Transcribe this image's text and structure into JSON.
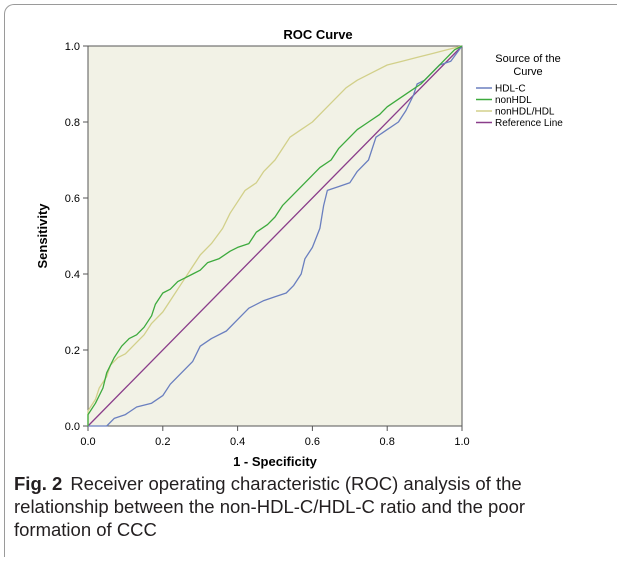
{
  "chart_data": {
    "type": "line",
    "title": "ROC Curve",
    "xlabel": "1 - Specificity",
    "ylabel": "Sensitivity",
    "xlim": [
      0,
      1
    ],
    "ylim": [
      0,
      1
    ],
    "x_ticks": [
      "0.0",
      "0.2",
      "0.4",
      "0.6",
      "0.8",
      "1.0"
    ],
    "y_ticks": [
      "0.0",
      "0.2",
      "0.4",
      "0.6",
      "0.8",
      "1.0"
    ],
    "grid": false,
    "legend": {
      "title": "Source of the Curve",
      "placement": "right"
    },
    "series": [
      {
        "name": "HDL-C",
        "color": "#6a7fbf",
        "points": [
          [
            0,
            0
          ],
          [
            0.05,
            0
          ],
          [
            0.07,
            0.02
          ],
          [
            0.1,
            0.03
          ],
          [
            0.13,
            0.05
          ],
          [
            0.17,
            0.06
          ],
          [
            0.2,
            0.08
          ],
          [
            0.22,
            0.11
          ],
          [
            0.25,
            0.14
          ],
          [
            0.28,
            0.17
          ],
          [
            0.3,
            0.21
          ],
          [
            0.33,
            0.23
          ],
          [
            0.37,
            0.25
          ],
          [
            0.4,
            0.28
          ],
          [
            0.43,
            0.31
          ],
          [
            0.47,
            0.33
          ],
          [
            0.5,
            0.34
          ],
          [
            0.53,
            0.35
          ],
          [
            0.55,
            0.37
          ],
          [
            0.57,
            0.4
          ],
          [
            0.58,
            0.44
          ],
          [
            0.6,
            0.47
          ],
          [
            0.62,
            0.52
          ],
          [
            0.63,
            0.58
          ],
          [
            0.64,
            0.62
          ],
          [
            0.67,
            0.63
          ],
          [
            0.7,
            0.64
          ],
          [
            0.72,
            0.67
          ],
          [
            0.75,
            0.7
          ],
          [
            0.77,
            0.76
          ],
          [
            0.8,
            0.78
          ],
          [
            0.83,
            0.8
          ],
          [
            0.85,
            0.83
          ],
          [
            0.87,
            0.87
          ],
          [
            0.88,
            0.9
          ],
          [
            0.9,
            0.91
          ],
          [
            0.92,
            0.93
          ],
          [
            0.94,
            0.95
          ],
          [
            0.97,
            0.96
          ],
          [
            1.0,
            1.0
          ]
        ]
      },
      {
        "name": "nonHDL",
        "color": "#3daa3d",
        "points": [
          [
            0,
            0
          ],
          [
            0,
            0.03
          ],
          [
            0.02,
            0.06
          ],
          [
            0.04,
            0.1
          ],
          [
            0.05,
            0.14
          ],
          [
            0.07,
            0.18
          ],
          [
            0.09,
            0.21
          ],
          [
            0.11,
            0.23
          ],
          [
            0.13,
            0.24
          ],
          [
            0.15,
            0.26
          ],
          [
            0.17,
            0.29
          ],
          [
            0.18,
            0.32
          ],
          [
            0.2,
            0.35
          ],
          [
            0.22,
            0.36
          ],
          [
            0.24,
            0.38
          ],
          [
            0.26,
            0.39
          ],
          [
            0.28,
            0.4
          ],
          [
            0.3,
            0.41
          ],
          [
            0.32,
            0.43
          ],
          [
            0.35,
            0.44
          ],
          [
            0.38,
            0.46
          ],
          [
            0.4,
            0.47
          ],
          [
            0.43,
            0.48
          ],
          [
            0.45,
            0.51
          ],
          [
            0.48,
            0.53
          ],
          [
            0.5,
            0.55
          ],
          [
            0.52,
            0.58
          ],
          [
            0.55,
            0.61
          ],
          [
            0.58,
            0.64
          ],
          [
            0.6,
            0.66
          ],
          [
            0.62,
            0.68
          ],
          [
            0.65,
            0.7
          ],
          [
            0.67,
            0.73
          ],
          [
            0.7,
            0.76
          ],
          [
            0.72,
            0.78
          ],
          [
            0.75,
            0.8
          ],
          [
            0.78,
            0.82
          ],
          [
            0.8,
            0.84
          ],
          [
            0.83,
            0.86
          ],
          [
            0.86,
            0.88
          ],
          [
            0.89,
            0.9
          ],
          [
            0.92,
            0.93
          ],
          [
            0.95,
            0.96
          ],
          [
            0.98,
            0.99
          ],
          [
            1.0,
            1.0
          ]
        ]
      },
      {
        "name": "nonHDL/HDL",
        "color": "#d2d08a",
        "points": [
          [
            0,
            0
          ],
          [
            0,
            0.04
          ],
          [
            0.02,
            0.07
          ],
          [
            0.03,
            0.1
          ],
          [
            0.05,
            0.13
          ],
          [
            0.06,
            0.16
          ],
          [
            0.08,
            0.18
          ],
          [
            0.1,
            0.19
          ],
          [
            0.12,
            0.21
          ],
          [
            0.15,
            0.24
          ],
          [
            0.17,
            0.27
          ],
          [
            0.2,
            0.3
          ],
          [
            0.22,
            0.33
          ],
          [
            0.24,
            0.36
          ],
          [
            0.26,
            0.39
          ],
          [
            0.28,
            0.42
          ],
          [
            0.3,
            0.45
          ],
          [
            0.33,
            0.48
          ],
          [
            0.36,
            0.52
          ],
          [
            0.38,
            0.56
          ],
          [
            0.4,
            0.59
          ],
          [
            0.42,
            0.62
          ],
          [
            0.45,
            0.64
          ],
          [
            0.47,
            0.67
          ],
          [
            0.5,
            0.7
          ],
          [
            0.52,
            0.73
          ],
          [
            0.54,
            0.76
          ],
          [
            0.57,
            0.78
          ],
          [
            0.6,
            0.8
          ],
          [
            0.63,
            0.83
          ],
          [
            0.66,
            0.86
          ],
          [
            0.69,
            0.89
          ],
          [
            0.72,
            0.91
          ],
          [
            0.76,
            0.93
          ],
          [
            0.8,
            0.95
          ],
          [
            0.84,
            0.96
          ],
          [
            0.88,
            0.97
          ],
          [
            0.92,
            0.98
          ],
          [
            0.96,
            0.99
          ],
          [
            1.0,
            1.0
          ]
        ]
      },
      {
        "name": "Reference Line",
        "color": "#8a3d8a",
        "points": [
          [
            0,
            0
          ],
          [
            1,
            1
          ]
        ]
      }
    ]
  },
  "caption": {
    "label": "Fig. 2",
    "text": "Receiver operating characteristic (ROC) analysis of the relationship between the non-HDL-C/HDL-C ratio and the poor formation of CCC"
  }
}
